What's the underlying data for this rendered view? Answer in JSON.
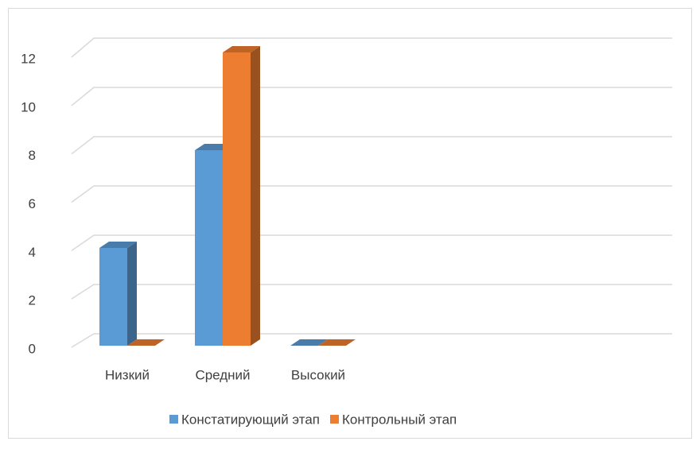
{
  "chart_data": {
    "type": "bar3d",
    "categories": [
      "Низкий",
      "Средний",
      "Высокий"
    ],
    "series": [
      {
        "name": "Констатирующий этап",
        "color": "#5b9bd5",
        "values": [
          4,
          8,
          0
        ]
      },
      {
        "name": "Контрольный этап",
        "color": "#ed7d31",
        "values": [
          0,
          12,
          0
        ]
      }
    ],
    "ylim": [
      0,
      12
    ],
    "yticks": [
      0,
      2,
      4,
      6,
      8,
      10,
      12
    ],
    "grid": true,
    "legend": "bottom"
  }
}
